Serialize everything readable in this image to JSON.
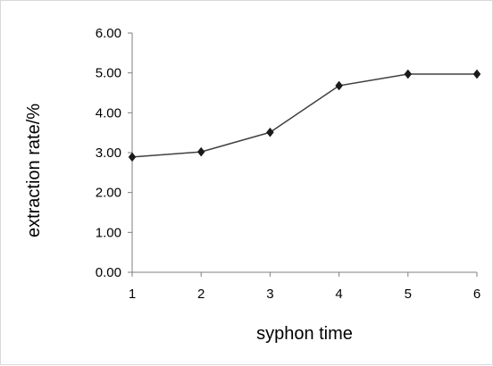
{
  "chart_data": {
    "type": "line",
    "xlabel": "syphon time",
    "ylabel": "extraction rate/%",
    "x": [
      1,
      2,
      3,
      4,
      5,
      6
    ],
    "x_tick_labels": [
      "1",
      "2",
      "3",
      "4",
      "5",
      "6"
    ],
    "y_ticks": [
      0,
      1,
      2,
      3,
      4,
      5,
      6
    ],
    "y_tick_labels": [
      "0.00",
      "1.00",
      "2.00",
      "3.00",
      "4.00",
      "5.00",
      "6.00"
    ],
    "ylim": [
      0,
      6
    ],
    "grid": false,
    "legend": "none",
    "series": [
      {
        "values": [
          2.89,
          3.02,
          3.51,
          4.68,
          4.97,
          4.97
        ],
        "color": "#404040",
        "marker": "diamond"
      }
    ]
  }
}
